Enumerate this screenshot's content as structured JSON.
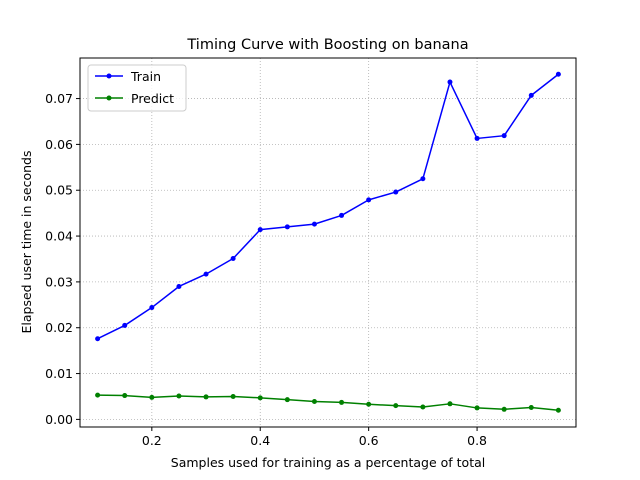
{
  "chart_data": {
    "type": "line",
    "title": "Timing Curve with Boosting on banana",
    "xlabel": "Samples used for training as a percentage of total",
    "ylabel": "Elapsed user time in seconds",
    "xlim": [
      0.0675,
      0.9825
    ],
    "ylim": [
      -0.00166,
      0.07885
    ],
    "xticks": [
      0.2,
      0.4,
      0.6,
      0.8
    ],
    "xtick_labels": [
      "0.2",
      "0.4",
      "0.6",
      "0.8"
    ],
    "yticks": [
      0.0,
      0.01,
      0.02,
      0.03,
      0.04,
      0.05,
      0.06,
      0.07
    ],
    "ytick_labels": [
      "0.00",
      "0.01",
      "0.02",
      "0.03",
      "0.04",
      "0.05",
      "0.06",
      "0.07"
    ],
    "grid": true,
    "legend_position": "top-left",
    "x": [
      0.1,
      0.15,
      0.2,
      0.25,
      0.3,
      0.35,
      0.4,
      0.45,
      0.5,
      0.55,
      0.6,
      0.65,
      0.7,
      0.75,
      0.8,
      0.85,
      0.9,
      0.95
    ],
    "series": [
      {
        "name": "Train",
        "color": "#0000ff",
        "values": [
          0.0176,
          0.0205,
          0.0244,
          0.029,
          0.0317,
          0.0351,
          0.0414,
          0.042,
          0.0426,
          0.0445,
          0.0479,
          0.0496,
          0.0525,
          0.0736,
          0.0613,
          0.0619,
          0.0707,
          0.0753
        ]
      },
      {
        "name": "Predict",
        "color": "#008000",
        "values": [
          0.0053,
          0.0052,
          0.0048,
          0.0051,
          0.0049,
          0.005,
          0.0047,
          0.0043,
          0.0039,
          0.0037,
          0.0033,
          0.003,
          0.0027,
          0.0034,
          0.0025,
          0.0022,
          0.0026,
          0.002
        ]
      }
    ]
  }
}
